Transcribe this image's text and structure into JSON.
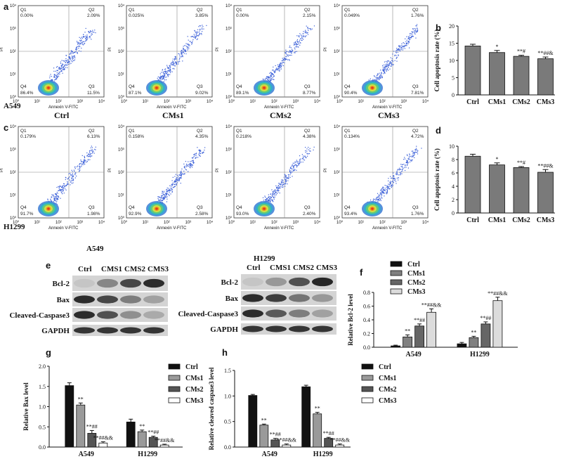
{
  "figure": {
    "panel_letters": [
      "a",
      "b",
      "c",
      "d",
      "e",
      "f",
      "g",
      "h"
    ],
    "flow_axes": {
      "xlabel": "Annexin V-FITC",
      "ylabel": "PI",
      "ticks": [
        "10⁰",
        "10¹",
        "10²",
        "10³",
        "10⁴"
      ]
    },
    "flow_rows": [
      {
        "cell_line": "A549",
        "plots": [
          {
            "group": "Ctrl",
            "q1": "0.00%",
            "q2": "2.09%",
            "q3": "11.5%",
            "q4": "86.4%"
          },
          {
            "group": "CMs1",
            "q1": "0.025%",
            "q2": "3.85%",
            "q3": "9.02%",
            "q4": "87.1%"
          },
          {
            "group": "CMs2",
            "q1": "0.00%",
            "q2": "2.15%",
            "q3": "8.77%",
            "q4": "89.1%"
          },
          {
            "group": "CMs3",
            "q1": "0.049%",
            "q2": "1.76%",
            "q3": "7.81%",
            "q4": "90.4%"
          }
        ]
      },
      {
        "cell_line": "H1299",
        "plots": [
          {
            "group": "",
            "q1": "0.179%",
            "q2": "6.13%",
            "q3": "1.98%",
            "q4": "91.7%"
          },
          {
            "group": "",
            "q1": "0.158%",
            "q2": "4.35%",
            "q3": "2.58%",
            "q4": "92.9%"
          },
          {
            "group": "",
            "q1": "0.218%",
            "q2": "4.38%",
            "q3": "2.40%",
            "q4": "93.0%"
          },
          {
            "group": "",
            "q1": "0.134%",
            "q2": "4.72%",
            "q3": "1.76%",
            "q4": "93.4%"
          }
        ]
      }
    ],
    "western": {
      "blots": [
        {
          "cell_line": "A549",
          "lanes": [
            "Ctrl",
            "CMS1",
            "CMS2",
            "CMS3"
          ],
          "bcl2": [
            0.1,
            0.45,
            0.8,
            0.95
          ],
          "bax": [
            0.95,
            0.8,
            0.5,
            0.3
          ],
          "casp": [
            0.95,
            0.75,
            0.4,
            0.25
          ],
          "gapdh": [
            0.9,
            0.9,
            0.9,
            0.9
          ]
        },
        {
          "cell_line": "H1299",
          "lanes": [
            "Ctrl",
            "CMS1",
            "CMS2",
            "CMS3"
          ],
          "bcl2": [
            0.1,
            0.35,
            0.75,
            0.98
          ],
          "bax": [
            0.95,
            0.85,
            0.55,
            0.35
          ],
          "casp": [
            0.95,
            0.7,
            0.5,
            0.3
          ],
          "gapdh": [
            0.9,
            0.9,
            0.9,
            0.9
          ]
        }
      ],
      "proteins": [
        "Bcl-2",
        "Bax",
        "Cleaved-Caspase3",
        "GAPDH"
      ]
    }
  },
  "chart_data": [
    {
      "id": "b",
      "type": "bar",
      "categories": [
        "Ctrl",
        "CMs1",
        "CMs2",
        "CMs3"
      ],
      "values": [
        14.2,
        12.3,
        11.2,
        10.5
      ],
      "errors": [
        0.5,
        0.6,
        0.3,
        0.5
      ],
      "annotations": [
        "",
        "*",
        "**#",
        "**##&"
      ],
      "ylabel": "Cell apoptosis rate (%)",
      "ylim": [
        0,
        20
      ],
      "yticks": [
        "0",
        "5",
        "10",
        "15",
        "20"
      ]
    },
    {
      "id": "d",
      "type": "bar",
      "categories": [
        "Ctrl",
        "CMs1",
        "CMs2",
        "CMs3"
      ],
      "values": [
        8.5,
        7.2,
        6.8,
        6.1
      ],
      "errors": [
        0.3,
        0.3,
        0.15,
        0.4
      ],
      "annotations": [
        "",
        "*",
        "**#",
        "**##&"
      ],
      "ylabel": "Cell apoptosis rate (%)",
      "ylim": [
        0,
        10
      ],
      "yticks": [
        "0",
        "2",
        "4",
        "6",
        "8",
        "10"
      ]
    },
    {
      "id": "f",
      "type": "bar",
      "groups": [
        "A549",
        "H1299"
      ],
      "series": [
        {
          "name": "Ctrl",
          "values": [
            0.02,
            0.05
          ],
          "errors": [
            0.01,
            0.02
          ],
          "annotations": [
            "",
            ""
          ]
        },
        {
          "name": "CMs1",
          "values": [
            0.15,
            0.14
          ],
          "errors": [
            0.03,
            0.02
          ],
          "annotations": [
            "**",
            "**"
          ]
        },
        {
          "name": "CMs2",
          "values": [
            0.31,
            0.34
          ],
          "errors": [
            0.03,
            0.03
          ],
          "annotations": [
            "**##",
            "**##"
          ]
        },
        {
          "name": "CMs3",
          "values": [
            0.51,
            0.68
          ],
          "errors": [
            0.05,
            0.05
          ],
          "annotations": [
            "**##&&",
            "**##&&"
          ]
        }
      ],
      "ylabel": "Relative Bcl-2 level",
      "ylim": [
        0,
        0.8
      ],
      "yticks": [
        "0.0",
        "0.2",
        "0.4",
        "0.6",
        "0.8"
      ],
      "colors": [
        "#111111",
        "#808080",
        "#666666",
        "#dcdcdc"
      ]
    },
    {
      "id": "g",
      "type": "bar",
      "groups": [
        "A549",
        "H1299"
      ],
      "series": [
        {
          "name": "Ctrl",
          "values": [
            1.52,
            0.62
          ],
          "errors": [
            0.07,
            0.07
          ],
          "annotations": [
            "",
            ""
          ]
        },
        {
          "name": "CMs1",
          "values": [
            1.04,
            0.38
          ],
          "errors": [
            0.05,
            0.04
          ],
          "annotations": [
            "**",
            "**"
          ]
        },
        {
          "name": "CMs2",
          "values": [
            0.34,
            0.24
          ],
          "errors": [
            0.07,
            0.03
          ],
          "annotations": [
            "**##",
            "**##"
          ]
        },
        {
          "name": "CMs3",
          "values": [
            0.1,
            0.05
          ],
          "errors": [
            0.03,
            0.02
          ],
          "annotations": [
            "**##&&",
            "**##&&"
          ]
        }
      ],
      "ylabel": "Relative Bax level",
      "ylim": [
        0,
        2.0
      ],
      "yticks": [
        "0.0",
        "0.5",
        "1.0",
        "1.5",
        "2.0"
      ],
      "colors": [
        "#111111",
        "#9a9a9a",
        "#555555",
        "#ffffff"
      ]
    },
    {
      "id": "h",
      "type": "bar",
      "groups": [
        "A549",
        "H1299"
      ],
      "series": [
        {
          "name": "Ctrl",
          "values": [
            1.01,
            1.18
          ],
          "errors": [
            0.02,
            0.03
          ],
          "annotations": [
            "",
            ""
          ]
        },
        {
          "name": "CMs1",
          "values": [
            0.43,
            0.65
          ],
          "errors": [
            0.02,
            0.03
          ],
          "annotations": [
            "**",
            "**"
          ]
        },
        {
          "name": "CMs2",
          "values": [
            0.14,
            0.17
          ],
          "errors": [
            0.03,
            0.02
          ],
          "annotations": [
            "**##",
            "**##"
          ]
        },
        {
          "name": "CMs3",
          "values": [
            0.04,
            0.04
          ],
          "errors": [
            0.02,
            0.02
          ],
          "annotations": [
            "**##&&",
            "**##&&"
          ]
        }
      ],
      "ylabel": "Relative cleaved caspase3 level",
      "ylim": [
        0,
        1.5
      ],
      "yticks": [
        "0.0",
        "0.5",
        "1.0",
        "1.5"
      ],
      "colors": [
        "#111111",
        "#9a9a9a",
        "#555555",
        "#ffffff"
      ]
    }
  ]
}
